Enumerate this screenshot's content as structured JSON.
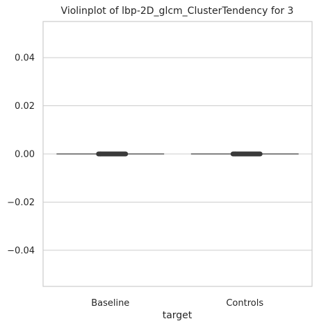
{
  "chart_data": {
    "type": "violin",
    "title": "Violinplot of lbp-2D_glcm_ClusterTendency for 3",
    "xlabel": "target",
    "ylabel": "",
    "categories": [
      "Baseline",
      "Controls"
    ],
    "ylim": [
      -0.055,
      0.055
    ],
    "yticks": [
      -0.04,
      -0.02,
      0.0,
      0.02,
      0.04
    ],
    "ytick_labels": [
      "−0.04",
      "−0.02",
      "0.00",
      "0.02",
      "0.04"
    ],
    "grid": "horizontal",
    "series": [
      {
        "category": "Baseline",
        "median": 0.0,
        "q1": 0.0,
        "q3": 0.0,
        "min": 0.0,
        "max": 0.0
      },
      {
        "category": "Controls",
        "median": 0.0,
        "q1": 0.0,
        "q3": 0.0,
        "min": 0.0,
        "max": 0.0
      }
    ],
    "colors": {
      "grid": "#cccccc",
      "spine": "#cccccc",
      "violin_line": "#595959",
      "box": "#3a3a3a",
      "text": "#262626"
    }
  }
}
